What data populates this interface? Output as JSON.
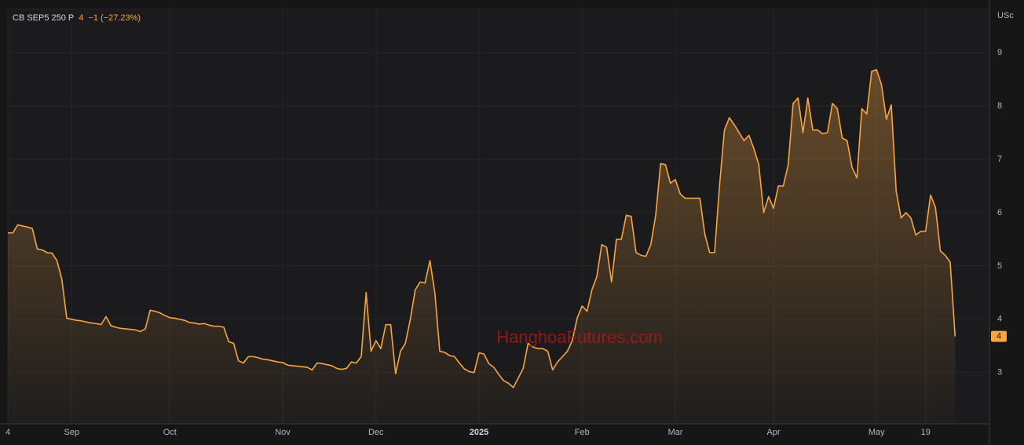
{
  "chart_data": {
    "type": "area",
    "title": "CB SEP5 250 P",
    "price": "4",
    "change": "−1 (−27.23%)",
    "unit": "USc",
    "watermark": "HanghoaFutures.com",
    "categories": [
      "4",
      null,
      null,
      null,
      null,
      null,
      null,
      null,
      null,
      null,
      null,
      null,
      null,
      "Sep",
      null,
      null,
      null,
      null,
      null,
      null,
      null,
      null,
      null,
      null,
      null,
      null,
      null,
      null,
      null,
      null,
      null,
      null,
      null,
      "Oct",
      null,
      null,
      null,
      null,
      null,
      null,
      null,
      null,
      null,
      null,
      null,
      null,
      null,
      null,
      null,
      null,
      null,
      null,
      null,
      null,
      null,
      null,
      "Nov",
      null,
      null,
      null,
      null,
      null,
      null,
      null,
      null,
      null,
      null,
      null,
      null,
      null,
      null,
      null,
      null,
      null,
      null,
      "Dec",
      null,
      null,
      null,
      null,
      null,
      null,
      null,
      null,
      null,
      null,
      null,
      null,
      null,
      null,
      null,
      null,
      null,
      null,
      null,
      null,
      "2025",
      null,
      null,
      null,
      null,
      null,
      null,
      null,
      null,
      null,
      null,
      null,
      null,
      null,
      null,
      null,
      null,
      null,
      null,
      null,
      null,
      "Feb",
      null,
      null,
      null,
      null,
      null,
      null,
      null,
      null,
      null,
      null,
      null,
      null,
      null,
      null,
      null,
      null,
      null,
      null,
      "Mar",
      null,
      null,
      null,
      null,
      null,
      null,
      null,
      null,
      null,
      null,
      null,
      null,
      null,
      null,
      null,
      null,
      null,
      null,
      null,
      "Apr",
      null,
      null,
      null,
      null,
      null,
      null,
      null,
      null,
      null,
      null,
      null,
      null,
      null,
      null,
      null,
      null,
      null,
      null,
      null,
      null,
      "May",
      null,
      null,
      null,
      null,
      null,
      null,
      null,
      null,
      null,
      "19",
      null,
      null,
      null,
      null,
      null,
      null
    ],
    "series": [
      {
        "name": "CB SEP5 250 P",
        "color": "#f7a541",
        "values": [
          5.62,
          5.62,
          5.77,
          5.75,
          5.73,
          5.7,
          5.32,
          5.3,
          5.25,
          5.24,
          5.1,
          4.75,
          4.02,
          4.0,
          3.98,
          3.97,
          3.95,
          3.93,
          3.92,
          3.9,
          4.05,
          3.88,
          3.85,
          3.83,
          3.82,
          3.81,
          3.8,
          3.77,
          3.82,
          4.17,
          4.15,
          4.12,
          4.07,
          4.03,
          4.02,
          4.0,
          3.98,
          3.94,
          3.93,
          3.91,
          3.92,
          3.89,
          3.87,
          3.87,
          3.85,
          3.58,
          3.55,
          3.22,
          3.18,
          3.3,
          3.3,
          3.28,
          3.25,
          3.24,
          3.22,
          3.2,
          3.19,
          3.14,
          3.13,
          3.12,
          3.11,
          3.1,
          3.05,
          3.18,
          3.17,
          3.15,
          3.13,
          3.08,
          3.06,
          3.08,
          3.2,
          3.18,
          3.3,
          4.5,
          3.4,
          3.6,
          3.45,
          3.9,
          3.9,
          2.98,
          3.4,
          3.55,
          4.0,
          4.55,
          4.7,
          4.68,
          5.1,
          4.5,
          3.4,
          3.38,
          3.32,
          3.3,
          3.18,
          3.07,
          3.02,
          3.0,
          3.37,
          3.35,
          3.17,
          3.1,
          2.97,
          2.85,
          2.8,
          2.72,
          2.9,
          3.08,
          3.55,
          3.48,
          3.45,
          3.45,
          3.4,
          3.05,
          3.2,
          3.3,
          3.4,
          3.6,
          4.02,
          4.25,
          4.15,
          4.55,
          4.8,
          5.4,
          5.35,
          4.7,
          5.5,
          5.5,
          5.95,
          5.93,
          5.25,
          5.2,
          5.18,
          5.4,
          5.95,
          6.92,
          6.9,
          6.55,
          6.62,
          6.35,
          6.27,
          6.27,
          6.27,
          6.27,
          5.6,
          5.25,
          5.25,
          6.5,
          7.55,
          7.78,
          7.65,
          7.5,
          7.35,
          7.45,
          7.2,
          6.9,
          6.0,
          6.3,
          6.08,
          6.5,
          6.5,
          6.9,
          8.05,
          8.15,
          7.5,
          8.15,
          7.55,
          7.55,
          7.48,
          7.5,
          8.05,
          7.95,
          7.4,
          7.35,
          6.85,
          6.65,
          7.95,
          7.85,
          8.65,
          8.68,
          8.4,
          7.75,
          8.02,
          6.4,
          5.9,
          6.0,
          5.9,
          5.58,
          5.65,
          5.65,
          6.33,
          6.1,
          5.28,
          5.2,
          5.07,
          3.68
        ]
      }
    ],
    "ylim": [
      2.04,
      9.84
    ],
    "yticks": [
      3,
      4,
      5,
      6,
      7,
      8,
      9
    ],
    "grid": true
  }
}
